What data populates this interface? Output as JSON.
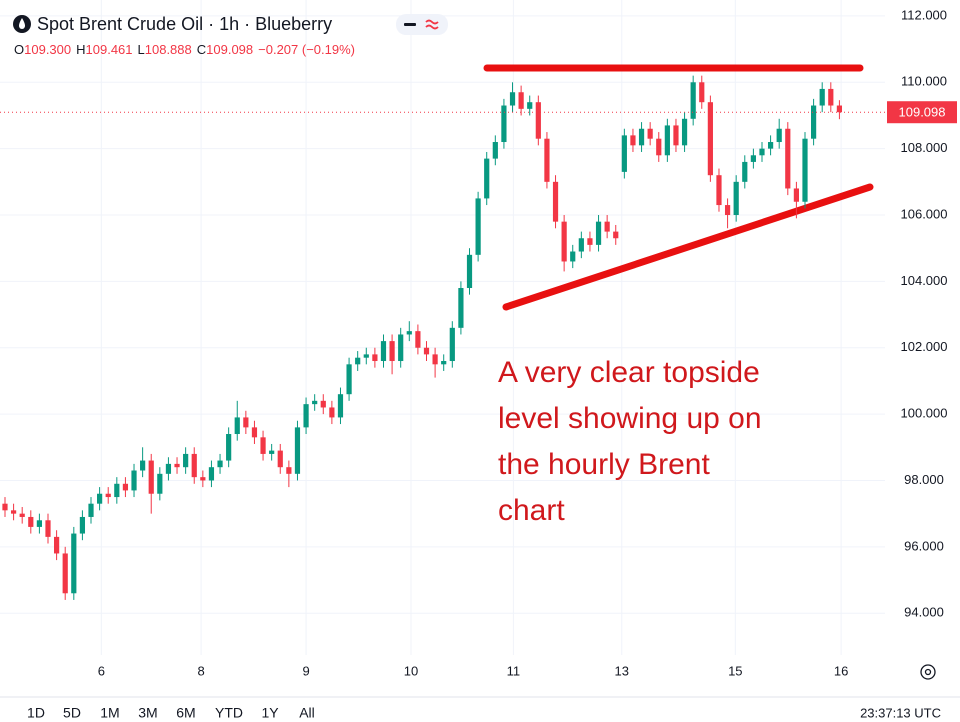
{
  "header": {
    "title": "Spot Brent Crude Oil · 1h · Blueberry",
    "ohlc_legend": [
      {
        "key": "O",
        "value": "109.300"
      },
      {
        "key": "H",
        "value": "109.461"
      },
      {
        "key": "L",
        "value": "108.888"
      },
      {
        "key": "C",
        "value": "109.098"
      }
    ],
    "change": "−0.207 (−0.19%)"
  },
  "chart_data": {
    "type": "candlestick",
    "ohlc": [
      [
        97.3,
        97.5,
        96.9,
        97.1
      ],
      [
        97.1,
        97.3,
        96.8,
        97.0
      ],
      [
        97.0,
        97.2,
        96.7,
        96.9
      ],
      [
        96.9,
        97.1,
        96.4,
        96.6
      ],
      [
        96.6,
        97.0,
        96.4,
        96.8
      ],
      [
        96.8,
        97.0,
        96.1,
        96.3
      ],
      [
        96.3,
        96.5,
        95.6,
        95.8
      ],
      [
        95.8,
        96.0,
        94.4,
        94.6
      ],
      [
        94.6,
        96.6,
        94.4,
        96.4
      ],
      [
        96.4,
        97.1,
        96.2,
        96.9
      ],
      [
        96.9,
        97.5,
        96.7,
        97.3
      ],
      [
        97.3,
        97.8,
        97.1,
        97.6
      ],
      [
        97.6,
        97.8,
        97.3,
        97.5
      ],
      [
        97.5,
        98.1,
        97.3,
        97.9
      ],
      [
        97.9,
        98.1,
        97.5,
        97.7
      ],
      [
        97.7,
        98.5,
        97.5,
        98.3
      ],
      [
        98.3,
        99.0,
        98.1,
        98.6
      ],
      [
        98.6,
        98.8,
        97.0,
        97.6
      ],
      [
        97.6,
        98.4,
        97.4,
        98.2
      ],
      [
        98.2,
        98.7,
        98.0,
        98.5
      ],
      [
        98.5,
        98.7,
        98.2,
        98.4
      ],
      [
        98.4,
        99.0,
        98.2,
        98.8
      ],
      [
        98.8,
        99.0,
        97.9,
        98.1
      ],
      [
        98.1,
        98.3,
        97.8,
        98.0
      ],
      [
        98.0,
        98.6,
        97.8,
        98.4
      ],
      [
        98.4,
        98.8,
        98.2,
        98.6
      ],
      [
        98.6,
        99.6,
        98.4,
        99.4
      ],
      [
        99.4,
        100.4,
        99.2,
        99.9
      ],
      [
        99.9,
        100.1,
        99.4,
        99.6
      ],
      [
        99.6,
        99.8,
        99.1,
        99.3
      ],
      [
        99.3,
        99.5,
        98.6,
        98.8
      ],
      [
        98.8,
        99.1,
        98.6,
        98.9
      ],
      [
        98.9,
        99.1,
        98.2,
        98.4
      ],
      [
        98.4,
        98.6,
        97.8,
        98.2
      ],
      [
        98.2,
        99.8,
        98.0,
        99.6
      ],
      [
        99.6,
        100.5,
        99.4,
        100.3
      ],
      [
        100.3,
        100.6,
        100.1,
        100.4
      ],
      [
        100.4,
        100.6,
        100.0,
        100.2
      ],
      [
        100.2,
        100.4,
        99.7,
        99.9
      ],
      [
        99.9,
        100.8,
        99.7,
        100.6
      ],
      [
        100.6,
        101.7,
        100.4,
        101.5
      ],
      [
        101.5,
        101.9,
        101.3,
        101.7
      ],
      [
        101.7,
        102.0,
        101.5,
        101.8
      ],
      [
        101.8,
        102.0,
        101.4,
        101.6
      ],
      [
        101.6,
        102.4,
        101.4,
        102.2
      ],
      [
        102.2,
        102.4,
        101.2,
        101.6
      ],
      [
        101.6,
        102.6,
        101.4,
        102.4
      ],
      [
        102.4,
        102.8,
        102.2,
        102.5
      ],
      [
        102.5,
        102.7,
        101.8,
        102.0
      ],
      [
        102.0,
        102.2,
        101.6,
        101.8
      ],
      [
        101.8,
        102.0,
        101.1,
        101.5
      ],
      [
        101.5,
        101.8,
        101.3,
        101.6
      ],
      [
        101.6,
        102.8,
        101.4,
        102.6
      ],
      [
        102.6,
        104.0,
        102.4,
        103.8
      ],
      [
        103.8,
        105.0,
        103.6,
        104.8
      ],
      [
        104.8,
        106.7,
        104.6,
        106.5
      ],
      [
        106.5,
        107.9,
        106.3,
        107.7
      ],
      [
        107.7,
        108.4,
        107.5,
        108.2
      ],
      [
        108.2,
        109.5,
        108.0,
        109.3
      ],
      [
        109.3,
        110.0,
        109.1,
        109.7
      ],
      [
        109.7,
        109.9,
        109.0,
        109.2
      ],
      [
        109.2,
        109.6,
        109.0,
        109.4
      ],
      [
        109.4,
        109.6,
        108.1,
        108.3
      ],
      [
        108.3,
        108.5,
        106.8,
        107.0
      ],
      [
        107.0,
        107.2,
        105.6,
        105.8
      ],
      [
        105.8,
        106.0,
        104.3,
        104.6
      ],
      [
        104.6,
        105.1,
        104.4,
        104.9
      ],
      [
        104.9,
        105.5,
        104.7,
        105.3
      ],
      [
        105.3,
        105.5,
        104.9,
        105.1
      ],
      [
        105.1,
        106.0,
        104.9,
        105.8
      ],
      [
        105.8,
        106.0,
        105.3,
        105.5
      ],
      [
        105.5,
        105.7,
        105.1,
        105.3
      ],
      [
        107.3,
        108.6,
        107.1,
        108.4
      ],
      [
        108.4,
        108.6,
        107.9,
        108.1
      ],
      [
        108.1,
        108.8,
        107.9,
        108.6
      ],
      [
        108.6,
        108.8,
        108.1,
        108.3
      ],
      [
        108.3,
        108.5,
        107.6,
        107.8
      ],
      [
        107.8,
        108.9,
        107.6,
        108.7
      ],
      [
        108.7,
        108.9,
        107.9,
        108.1
      ],
      [
        108.1,
        109.1,
        107.9,
        108.9
      ],
      [
        108.9,
        110.2,
        108.7,
        110.0
      ],
      [
        110.0,
        110.2,
        109.2,
        109.4
      ],
      [
        109.4,
        109.6,
        107.0,
        107.2
      ],
      [
        107.2,
        107.4,
        106.1,
        106.3
      ],
      [
        106.3,
        106.5,
        105.6,
        106.0
      ],
      [
        106.0,
        107.2,
        105.8,
        107.0
      ],
      [
        107.0,
        107.8,
        106.8,
        107.6
      ],
      [
        107.6,
        108.0,
        107.4,
        107.8
      ],
      [
        107.8,
        108.2,
        107.6,
        108.0
      ],
      [
        108.0,
        108.4,
        107.8,
        108.2
      ],
      [
        108.2,
        108.9,
        108.0,
        108.6
      ],
      [
        108.6,
        108.8,
        106.6,
        106.8
      ],
      [
        106.8,
        107.0,
        105.9,
        106.4
      ],
      [
        106.4,
        108.5,
        106.2,
        108.3
      ],
      [
        108.3,
        109.5,
        108.1,
        109.3
      ],
      [
        109.3,
        110.0,
        109.1,
        109.8
      ],
      [
        109.8,
        110.0,
        109.1,
        109.3
      ],
      [
        109.3,
        109.461,
        108.888,
        109.098
      ]
    ],
    "up_color": "#089981",
    "down_color": "#f23645",
    "xlim": [
      -0.58,
      102.3
    ],
    "xticks": [
      {
        "value": 11.2,
        "label": "6"
      },
      {
        "value": 22.8,
        "label": "8"
      },
      {
        "value": 35.0,
        "label": "9"
      },
      {
        "value": 47.2,
        "label": "10"
      },
      {
        "value": 59.1,
        "label": "11"
      },
      {
        "value": 71.7,
        "label": "13"
      },
      {
        "value": 84.9,
        "label": "15"
      },
      {
        "value": 97.2,
        "label": "16"
      }
    ],
    "ylim": [
      92.74,
      112.48
    ],
    "yticks": [
      {
        "value": 94,
        "label": "94.000"
      },
      {
        "value": 96,
        "label": "96.000"
      },
      {
        "value": 98,
        "label": "98.000"
      },
      {
        "value": 100,
        "label": "100.000"
      },
      {
        "value": 102,
        "label": "102.000"
      },
      {
        "value": 104,
        "label": "104.000"
      },
      {
        "value": 106,
        "label": "106.000"
      },
      {
        "value": 108,
        "label": "108.000"
      },
      {
        "value": 110,
        "label": "110.000"
      },
      {
        "value": 112,
        "label": "112.000"
      }
    ],
    "grid": true,
    "annotation": [
      "A very clear topside",
      "level showing up on",
      "the hourly Brent",
      "chart"
    ]
  },
  "footer": {
    "periods": [
      "1D",
      "5D",
      "1M",
      "3M",
      "6M",
      "YTD",
      "1Y",
      "All"
    ],
    "clock": "23:37:13 UTC"
  }
}
